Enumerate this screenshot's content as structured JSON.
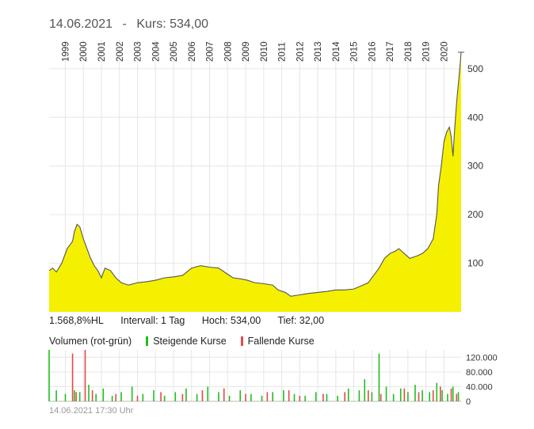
{
  "header": {
    "date": "14.06.2021",
    "separator": "-",
    "price_label": "Kurs: 534,00"
  },
  "stats": {
    "performance": "1.568,8%HL",
    "interval": "Intervall: 1 Tag",
    "high": "Hoch:  534,00",
    "low": "Tief:  32,00"
  },
  "volume_legend": {
    "title": "Volumen (rot-grün)",
    "rising": "Steigende Kurse",
    "falling": "Fallende Kurse"
  },
  "footer": {
    "timestamp": "14.06.2021 17:30 Uhr"
  },
  "colors": {
    "fill": "#f5f000",
    "line": "#555555",
    "grid": "#e6e6e6",
    "rising": "#1fbf1f",
    "falling": "#e84848"
  },
  "chart_data": [
    {
      "type": "area",
      "title": "",
      "x_ticks": [
        "1999",
        "2000",
        "2001",
        "2002",
        "2003",
        "2004",
        "2005",
        "2006",
        "2007",
        "2008",
        "2009",
        "2010",
        "2011",
        "2012",
        "2013",
        "2014",
        "2015",
        "2016",
        "2017",
        "2018",
        "2019",
        "2020"
      ],
      "y_ticks": [
        "100",
        "200",
        "300",
        "400",
        "500"
      ],
      "ylim": [
        0,
        560
      ],
      "xlim": [
        1998.6,
        2021.45
      ],
      "grid": true,
      "series": [
        {
          "x": [
            1998.6,
            1998.8,
            1999.0,
            1999.3,
            1999.6,
            1999.9,
            2000.0,
            2000.15,
            2000.3,
            2000.5,
            2000.7,
            2000.9,
            2001.1,
            2001.3,
            2001.5,
            2001.7,
            2002.0,
            2002.3,
            2002.6,
            2003.0,
            2003.5,
            2004.0,
            2004.5,
            2005.0,
            2005.5,
            2006.0,
            2006.5,
            2007.0,
            2007.5,
            2008.0,
            2008.4,
            2008.8,
            2009.2,
            2009.6,
            2010.0,
            2010.5,
            2011.0,
            2011.3,
            2011.7,
            2012.0,
            2012.5,
            2013.0,
            2013.5,
            2014.0,
            2014.5,
            2015.0,
            2015.5,
            2016.0,
            2016.3,
            2016.6,
            2016.9,
            2017.2,
            2017.5,
            2017.8,
            2018.0,
            2018.3,
            2018.6,
            2019.0,
            2019.3,
            2019.6,
            2019.9,
            2020.1,
            2020.2,
            2020.35,
            2020.5,
            2020.65,
            2020.8,
            2020.9,
            2021.0,
            2021.1,
            2021.2,
            2021.3,
            2021.4,
            2021.45
          ],
          "y": [
            85,
            90,
            82,
            100,
            130,
            145,
            165,
            180,
            175,
            150,
            130,
            110,
            95,
            85,
            70,
            90,
            85,
            70,
            60,
            55,
            60,
            62,
            65,
            70,
            72,
            75,
            90,
            95,
            92,
            90,
            80,
            70,
            68,
            65,
            60,
            58,
            55,
            45,
            40,
            32,
            35,
            38,
            40,
            42,
            45,
            45,
            47,
            55,
            60,
            75,
            90,
            110,
            120,
            125,
            130,
            120,
            110,
            115,
            120,
            130,
            150,
            200,
            260,
            300,
            350,
            370,
            380,
            360,
            320,
            380,
            430,
            470,
            510,
            534
          ]
        }
      ]
    },
    {
      "type": "bar",
      "title": "Volumen (rot-grün)",
      "y_ticks": [
        "0",
        "40.000",
        "80.000",
        "120.000"
      ],
      "ylim": [
        0,
        140000
      ],
      "xlim": [
        1998.6,
        2021.45
      ],
      "series": [
        {
          "name": "Steigende Kurse",
          "x": [
            1998.6,
            1999.0,
            1999.5,
            2000.0,
            2000.3,
            2000.8,
            2001.2,
            2001.6,
            2002.1,
            2002.6,
            2003.2,
            2003.8,
            2004.4,
            2005.0,
            2005.6,
            2006.2,
            2006.8,
            2007.4,
            2008.0,
            2008.6,
            2009.2,
            2009.8,
            2010.4,
            2011.0,
            2011.6,
            2012.2,
            2012.8,
            2013.4,
            2014.0,
            2014.6,
            2015.2,
            2015.8,
            2016.1,
            2016.5,
            2016.9,
            2017.3,
            2017.7,
            2018.1,
            2018.5,
            2018.9,
            2019.3,
            2019.7,
            2020.1,
            2020.4,
            2020.7,
            2021.0,
            2021.3
          ],
          "values": [
            140000,
            30000,
            20000,
            30000,
            25000,
            45000,
            20000,
            35000,
            15000,
            25000,
            40000,
            20000,
            30000,
            15000,
            25000,
            35000,
            20000,
            40000,
            25000,
            15000,
            30000,
            20000,
            15000,
            25000,
            30000,
            20000,
            15000,
            25000,
            20000,
            15000,
            35000,
            30000,
            60000,
            25000,
            130000,
            40000,
            20000,
            35000,
            25000,
            45000,
            30000,
            25000,
            50000,
            30000,
            20000,
            40000,
            25000
          ]
        },
        {
          "name": "Fallende Kurse",
          "x": [
            1999.9,
            2000.1,
            2000.6,
            2001.0,
            2002.3,
            2003.5,
            2004.8,
            2006.0,
            2007.1,
            2008.3,
            2009.5,
            2010.7,
            2011.9,
            2012.5,
            2013.8,
            2015.0,
            2016.3,
            2017.0,
            2018.3,
            2019.1,
            2019.9,
            2020.3,
            2020.9,
            2021.2
          ],
          "values": [
            130000,
            25000,
            140000,
            30000,
            20000,
            15000,
            25000,
            20000,
            30000,
            35000,
            20000,
            25000,
            30000,
            15000,
            20000,
            25000,
            30000,
            20000,
            35000,
            25000,
            30000,
            40000,
            35000,
            20000
          ]
        }
      ]
    }
  ]
}
